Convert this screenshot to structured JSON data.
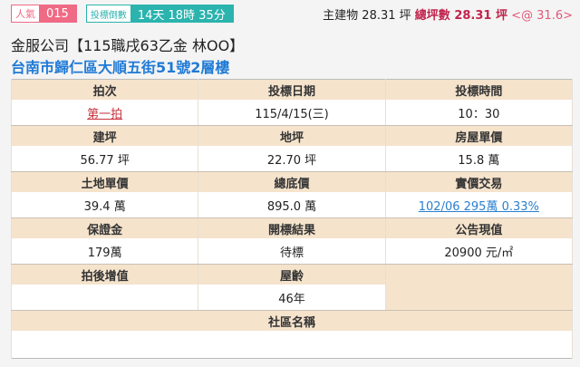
{
  "header": {
    "popularity_label": "人氣",
    "popularity_value": "015",
    "countdown_label": "投標倒數",
    "countdown_value": "14天 18時 35分",
    "main_building": "主建物 28.31 坪",
    "total_area": "總坪數 28.31 坪",
    "unit_price": "<@ 31.6>"
  },
  "title": "金服公司【115職戌63乙金 林OO】",
  "address": "台南市歸仁區大順五街51號2層樓",
  "table": {
    "round_label": "拍次",
    "round": "第一拍",
    "date_label": "投標日期",
    "date": "115/4/15(三)",
    "time_label": "投標時間",
    "time": "10：30",
    "building_area_label": "建坪",
    "building_area": "56.77 坪",
    "land_area_label": "地坪",
    "land_area": "22.70 坪",
    "house_unit_price_label": "房屋單價",
    "house_unit_price": "15.8 萬",
    "land_unit_price_label": "土地單價",
    "land_unit_price": "39.4 萬",
    "reserve_price_label": "總底價",
    "reserve_price": "895.0 萬",
    "actual_trade_label": "實價交易",
    "actual_trade": "102/06 295萬 0.33%",
    "deposit_label": "保證金",
    "deposit": "179萬",
    "result_label": "開標結果",
    "result": "待標",
    "announced_value_label": "公告現值",
    "announced_value": "20900 元/㎡",
    "post_auction_gain_label": "拍後增值",
    "post_auction_gain": "",
    "age_label": "屋齡",
    "age": "46年",
    "community_label": "社區名稱",
    "community": ""
  }
}
